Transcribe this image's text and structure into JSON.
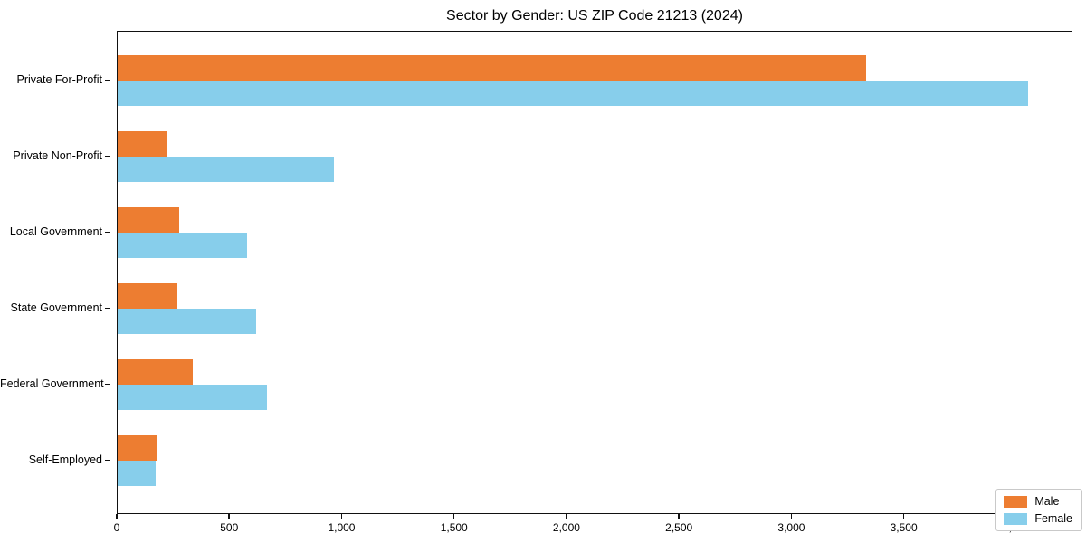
{
  "title": "Sector by Gender: US ZIP Code 21213 (2024)",
  "colors": {
    "male_bar": "#ed7d31",
    "female_bar": "#87ceeb",
    "axis": "#111111",
    "legend_border": "#c9c9c9",
    "background": "#ffffff"
  },
  "chart_data": {
    "type": "bar",
    "orientation": "horizontal",
    "title": "Sector by Gender: US ZIP Code 21213 (2024)",
    "categories": [
      "Private For-Profit",
      "Private Non-Profit",
      "Local Government",
      "State Government",
      "Federal Government",
      "Self-Employed"
    ],
    "series": [
      {
        "name": "Male",
        "color": "#ed7d31",
        "values": [
          3335,
          220,
          275,
          265,
          335,
          175
        ]
      },
      {
        "name": "Female",
        "color": "#87ceeb",
        "values": [
          4055,
          965,
          575,
          615,
          665,
          170
        ]
      }
    ],
    "xlabel": "",
    "ylabel": "",
    "xlim": [
      0,
      4250
    ],
    "xticks": [
      0,
      500,
      1000,
      1500,
      2000,
      2500,
      3000,
      3500,
      4000
    ],
    "xtick_labels": [
      "0",
      "500",
      "1,000",
      "1,500",
      "2,000",
      "2,500",
      "3,000",
      "3,500",
      "4,000"
    ],
    "grid": false,
    "legend": {
      "position": "lower right",
      "entries": [
        "Male",
        "Female"
      ]
    }
  }
}
